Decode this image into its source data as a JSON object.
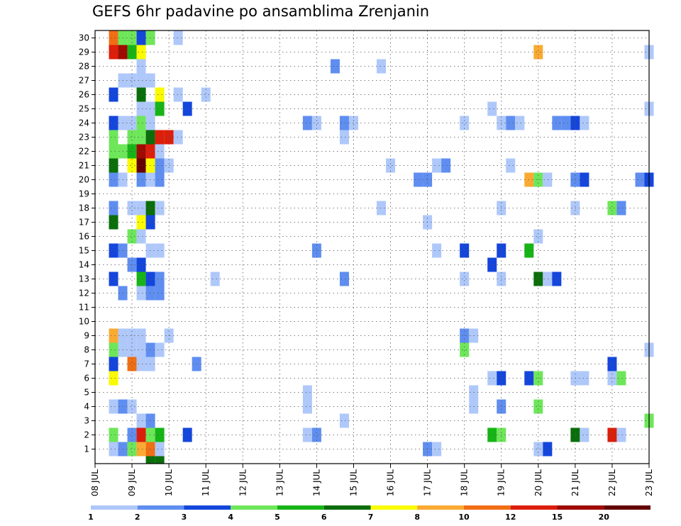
{
  "chart_data": {
    "type": "heatmap",
    "title": "GEFS 6hr padavine po ansamblima Zrenjanin",
    "xlabel": "",
    "ylabel": "",
    "x_tick_labels": [
      "08 JUL",
      "09 JUL",
      "10 JUL",
      "11 JUL",
      "12 JUL",
      "13 JUL",
      "14 JUL",
      "15 JUL",
      "16 JUL",
      "17 JUL",
      "18 JUL",
      "19 JUL",
      "20 JUL",
      "21 JUL",
      "22 JUL",
      "23 JUL"
    ],
    "y_tick_labels": [
      "1",
      "2",
      "3",
      "4",
      "5",
      "6",
      "7",
      "8",
      "9",
      "10",
      "11",
      "12",
      "13",
      "14",
      "15",
      "16",
      "17",
      "18",
      "19",
      "20",
      "21",
      "22",
      "23",
      "24",
      "25",
      "26",
      "27",
      "28",
      "29",
      "30"
    ],
    "x_unit": "6-hour step (0 = 08 JUL 00Z, 4 per day)",
    "xlim": [
      0,
      60
    ],
    "ylim": [
      0.5,
      30.5
    ],
    "grid": true,
    "legend_position": "bottom",
    "legend_levels": [
      "1",
      "2",
      "3",
      "4",
      "5",
      "6",
      "7",
      "8",
      "10",
      "12",
      "15",
      "20"
    ],
    "level_colors": [
      "#afc8fa",
      "#5f8ef0",
      "#1446dc",
      "#6ee65a",
      "#17b417",
      "#0a6e0a",
      "#fafa00",
      "#faaa32",
      "#f06e14",
      "#dc1e0a",
      "#a00a00",
      "#640000"
    ],
    "cells": [
      {
        "x": 2,
        "y": 30,
        "c": 9
      },
      {
        "x": 3,
        "y": 30,
        "c": 4
      },
      {
        "x": 4,
        "y": 30,
        "c": 4
      },
      {
        "x": 5,
        "y": 30,
        "c": 3
      },
      {
        "x": 6,
        "y": 30,
        "c": 4
      },
      {
        "x": 9,
        "y": 30,
        "c": 1
      },
      {
        "x": 2,
        "y": 29,
        "c": 10
      },
      {
        "x": 3,
        "y": 29,
        "c": 11
      },
      {
        "x": 4,
        "y": 29,
        "c": 5
      },
      {
        "x": 5,
        "y": 29,
        "c": 7
      },
      {
        "x": 48,
        "y": 29,
        "c": 8
      },
      {
        "x": 60,
        "y": 29,
        "c": 1
      },
      {
        "x": 5,
        "y": 28,
        "c": 1
      },
      {
        "x": 26,
        "y": 28,
        "c": 2
      },
      {
        "x": 31,
        "y": 28,
        "c": 1
      },
      {
        "x": 3,
        "y": 27,
        "c": 1
      },
      {
        "x": 4,
        "y": 27,
        "c": 1
      },
      {
        "x": 5,
        "y": 27,
        "c": 1
      },
      {
        "x": 6,
        "y": 27,
        "c": 1
      },
      {
        "x": 2,
        "y": 26,
        "c": 3
      },
      {
        "x": 5,
        "y": 26,
        "c": 6
      },
      {
        "x": 7,
        "y": 26,
        "c": 7
      },
      {
        "x": 9,
        "y": 26,
        "c": 1
      },
      {
        "x": 12,
        "y": 26,
        "c": 1
      },
      {
        "x": 5,
        "y": 25,
        "c": 1
      },
      {
        "x": 6,
        "y": 25,
        "c": 1
      },
      {
        "x": 7,
        "y": 25,
        "c": 5
      },
      {
        "x": 10,
        "y": 25,
        "c": 3
      },
      {
        "x": 43,
        "y": 25,
        "c": 1
      },
      {
        "x": 60,
        "y": 25,
        "c": 1
      },
      {
        "x": 2,
        "y": 24,
        "c": 3
      },
      {
        "x": 3,
        "y": 24,
        "c": 1
      },
      {
        "x": 4,
        "y": 24,
        "c": 1
      },
      {
        "x": 5,
        "y": 24,
        "c": 4
      },
      {
        "x": 6,
        "y": 24,
        "c": 1
      },
      {
        "x": 23,
        "y": 24,
        "c": 2
      },
      {
        "x": 24,
        "y": 24,
        "c": 1
      },
      {
        "x": 27,
        "y": 24,
        "c": 2
      },
      {
        "x": 28,
        "y": 24,
        "c": 1
      },
      {
        "x": 40,
        "y": 24,
        "c": 1
      },
      {
        "x": 44,
        "y": 24,
        "c": 1
      },
      {
        "x": 45,
        "y": 24,
        "c": 2
      },
      {
        "x": 46,
        "y": 24,
        "c": 1
      },
      {
        "x": 50,
        "y": 24,
        "c": 2
      },
      {
        "x": 51,
        "y": 24,
        "c": 2
      },
      {
        "x": 52,
        "y": 24,
        "c": 3
      },
      {
        "x": 53,
        "y": 24,
        "c": 1
      },
      {
        "x": 2,
        "y": 23,
        "c": 4
      },
      {
        "x": 4,
        "y": 23,
        "c": 4
      },
      {
        "x": 5,
        "y": 23,
        "c": 4
      },
      {
        "x": 6,
        "y": 23,
        "c": 6
      },
      {
        "x": 7,
        "y": 23,
        "c": 10
      },
      {
        "x": 8,
        "y": 23,
        "c": 10
      },
      {
        "x": 9,
        "y": 23,
        "c": 1
      },
      {
        "x": 27,
        "y": 23,
        "c": 1
      },
      {
        "x": 2,
        "y": 22,
        "c": 4
      },
      {
        "x": 3,
        "y": 22,
        "c": 4
      },
      {
        "x": 4,
        "y": 22,
        "c": 5
      },
      {
        "x": 5,
        "y": 22,
        "c": 11
      },
      {
        "x": 6,
        "y": 22,
        "c": 10
      },
      {
        "x": 7,
        "y": 22,
        "c": 1
      },
      {
        "x": 2,
        "y": 21,
        "c": 6
      },
      {
        "x": 4,
        "y": 21,
        "c": 7
      },
      {
        "x": 5,
        "y": 21,
        "c": 12
      },
      {
        "x": 6,
        "y": 21,
        "c": 7
      },
      {
        "x": 7,
        "y": 21,
        "c": 2
      },
      {
        "x": 8,
        "y": 21,
        "c": 1
      },
      {
        "x": 32,
        "y": 21,
        "c": 1
      },
      {
        "x": 37,
        "y": 21,
        "c": 1
      },
      {
        "x": 38,
        "y": 21,
        "c": 2
      },
      {
        "x": 45,
        "y": 21,
        "c": 1
      },
      {
        "x": 2,
        "y": 20,
        "c": 2
      },
      {
        "x": 3,
        "y": 20,
        "c": 1
      },
      {
        "x": 5,
        "y": 20,
        "c": 2
      },
      {
        "x": 6,
        "y": 20,
        "c": 1
      },
      {
        "x": 7,
        "y": 20,
        "c": 2
      },
      {
        "x": 35,
        "y": 20,
        "c": 2
      },
      {
        "x": 36,
        "y": 20,
        "c": 2
      },
      {
        "x": 47,
        "y": 20,
        "c": 8
      },
      {
        "x": 48,
        "y": 20,
        "c": 4
      },
      {
        "x": 49,
        "y": 20,
        "c": 1
      },
      {
        "x": 52,
        "y": 20,
        "c": 2
      },
      {
        "x": 53,
        "y": 20,
        "c": 3
      },
      {
        "x": 59,
        "y": 20,
        "c": 2
      },
      {
        "x": 60,
        "y": 20,
        "c": 3
      },
      {
        "x": 2,
        "y": 18,
        "c": 2
      },
      {
        "x": 4,
        "y": 18,
        "c": 1
      },
      {
        "x": 5,
        "y": 18,
        "c": 1
      },
      {
        "x": 6,
        "y": 18,
        "c": 6
      },
      {
        "x": 7,
        "y": 18,
        "c": 1
      },
      {
        "x": 31,
        "y": 18,
        "c": 1
      },
      {
        "x": 44,
        "y": 18,
        "c": 1
      },
      {
        "x": 52,
        "y": 18,
        "c": 1
      },
      {
        "x": 56,
        "y": 18,
        "c": 4
      },
      {
        "x": 57,
        "y": 18,
        "c": 2
      },
      {
        "x": 2,
        "y": 17,
        "c": 6
      },
      {
        "x": 5,
        "y": 17,
        "c": 7
      },
      {
        "x": 6,
        "y": 17,
        "c": 3
      },
      {
        "x": 36,
        "y": 17,
        "c": 1
      },
      {
        "x": 4,
        "y": 16,
        "c": 4
      },
      {
        "x": 5,
        "y": 16,
        "c": 1
      },
      {
        "x": 48,
        "y": 16,
        "c": 1
      },
      {
        "x": 2,
        "y": 15,
        "c": 3
      },
      {
        "x": 3,
        "y": 15,
        "c": 2
      },
      {
        "x": 6,
        "y": 15,
        "c": 1
      },
      {
        "x": 7,
        "y": 15,
        "c": 1
      },
      {
        "x": 24,
        "y": 15,
        "c": 2
      },
      {
        "x": 37,
        "y": 15,
        "c": 1
      },
      {
        "x": 40,
        "y": 15,
        "c": 3
      },
      {
        "x": 44,
        "y": 15,
        "c": 3
      },
      {
        "x": 47,
        "y": 15,
        "c": 5
      },
      {
        "x": 4,
        "y": 14,
        "c": 2
      },
      {
        "x": 5,
        "y": 14,
        "c": 3
      },
      {
        "x": 43,
        "y": 14,
        "c": 3
      },
      {
        "x": 2,
        "y": 13,
        "c": 3
      },
      {
        "x": 5,
        "y": 13,
        "c": 5
      },
      {
        "x": 6,
        "y": 13,
        "c": 3
      },
      {
        "x": 7,
        "y": 13,
        "c": 2
      },
      {
        "x": 13,
        "y": 13,
        "c": 1
      },
      {
        "x": 27,
        "y": 13,
        "c": 2
      },
      {
        "x": 40,
        "y": 13,
        "c": 1
      },
      {
        "x": 44,
        "y": 13,
        "c": 1
      },
      {
        "x": 48,
        "y": 13,
        "c": 6
      },
      {
        "x": 49,
        "y": 13,
        "c": 1
      },
      {
        "x": 50,
        "y": 13,
        "c": 3
      },
      {
        "x": 3,
        "y": 12,
        "c": 2
      },
      {
        "x": 5,
        "y": 12,
        "c": 1
      },
      {
        "x": 6,
        "y": 12,
        "c": 2
      },
      {
        "x": 7,
        "y": 12,
        "c": 2
      },
      {
        "x": 2,
        "y": 9,
        "c": 8
      },
      {
        "x": 3,
        "y": 9,
        "c": 1
      },
      {
        "x": 4,
        "y": 9,
        "c": 1
      },
      {
        "x": 5,
        "y": 9,
        "c": 1
      },
      {
        "x": 8,
        "y": 9,
        "c": 1
      },
      {
        "x": 40,
        "y": 9,
        "c": 2
      },
      {
        "x": 41,
        "y": 9,
        "c": 1
      },
      {
        "x": 2,
        "y": 8,
        "c": 4
      },
      {
        "x": 3,
        "y": 8,
        "c": 1
      },
      {
        "x": 4,
        "y": 8,
        "c": 1
      },
      {
        "x": 5,
        "y": 8,
        "c": 1
      },
      {
        "x": 6,
        "y": 8,
        "c": 2
      },
      {
        "x": 7,
        "y": 8,
        "c": 1
      },
      {
        "x": 40,
        "y": 8,
        "c": 4
      },
      {
        "x": 60,
        "y": 8,
        "c": 1
      },
      {
        "x": 2,
        "y": 7,
        "c": 3
      },
      {
        "x": 4,
        "y": 7,
        "c": 9
      },
      {
        "x": 5,
        "y": 7,
        "c": 1
      },
      {
        "x": 6,
        "y": 7,
        "c": 1
      },
      {
        "x": 11,
        "y": 7,
        "c": 2
      },
      {
        "x": 56,
        "y": 7,
        "c": 3
      },
      {
        "x": 2,
        "y": 6,
        "c": 7
      },
      {
        "x": 43,
        "y": 6,
        "c": 1
      },
      {
        "x": 44,
        "y": 6,
        "c": 3
      },
      {
        "x": 47,
        "y": 6,
        "c": 3
      },
      {
        "x": 48,
        "y": 6,
        "c": 4
      },
      {
        "x": 52,
        "y": 6,
        "c": 1
      },
      {
        "x": 53,
        "y": 6,
        "c": 1
      },
      {
        "x": 56,
        "y": 6,
        "c": 1
      },
      {
        "x": 57,
        "y": 6,
        "c": 4
      },
      {
        "x": 23,
        "y": 5,
        "c": 1
      },
      {
        "x": 41,
        "y": 5,
        "c": 1
      },
      {
        "x": 2,
        "y": 4,
        "c": 1
      },
      {
        "x": 3,
        "y": 4,
        "c": 2
      },
      {
        "x": 4,
        "y": 4,
        "c": 1
      },
      {
        "x": 23,
        "y": 4,
        "c": 1
      },
      {
        "x": 41,
        "y": 4,
        "c": 1
      },
      {
        "x": 44,
        "y": 4,
        "c": 2
      },
      {
        "x": 48,
        "y": 4,
        "c": 4
      },
      {
        "x": 5,
        "y": 3,
        "c": 1
      },
      {
        "x": 6,
        "y": 3,
        "c": 2
      },
      {
        "x": 27,
        "y": 3,
        "c": 1
      },
      {
        "x": 60,
        "y": 3,
        "c": 4
      },
      {
        "x": 2,
        "y": 2,
        "c": 4
      },
      {
        "x": 4,
        "y": 2,
        "c": 2
      },
      {
        "x": 5,
        "y": 2,
        "c": 10
      },
      {
        "x": 6,
        "y": 2,
        "c": 4
      },
      {
        "x": 7,
        "y": 2,
        "c": 5
      },
      {
        "x": 10,
        "y": 2,
        "c": 3
      },
      {
        "x": 23,
        "y": 2,
        "c": 1
      },
      {
        "x": 24,
        "y": 2,
        "c": 2
      },
      {
        "x": 43,
        "y": 2,
        "c": 5
      },
      {
        "x": 44,
        "y": 2,
        "c": 4
      },
      {
        "x": 52,
        "y": 2,
        "c": 6
      },
      {
        "x": 53,
        "y": 2,
        "c": 1
      },
      {
        "x": 56,
        "y": 2,
        "c": 10
      },
      {
        "x": 57,
        "y": 2,
        "c": 1
      },
      {
        "x": 2,
        "y": 1,
        "c": 1
      },
      {
        "x": 3,
        "y": 1,
        "c": 2
      },
      {
        "x": 4,
        "y": 1,
        "c": 4
      },
      {
        "x": 5,
        "y": 1,
        "c": 8
      },
      {
        "x": 6,
        "y": 1,
        "c": 9
      },
      {
        "x": 7,
        "y": 1,
        "c": 1
      },
      {
        "x": 36,
        "y": 1,
        "c": 2
      },
      {
        "x": 37,
        "y": 1,
        "c": 1
      },
      {
        "x": 48,
        "y": 1,
        "c": 1
      },
      {
        "x": 49,
        "y": 1,
        "c": 3
      },
      {
        "x": 6,
        "y": 0,
        "c": 6
      },
      {
        "x": 7,
        "y": 0,
        "c": 6
      }
    ]
  }
}
